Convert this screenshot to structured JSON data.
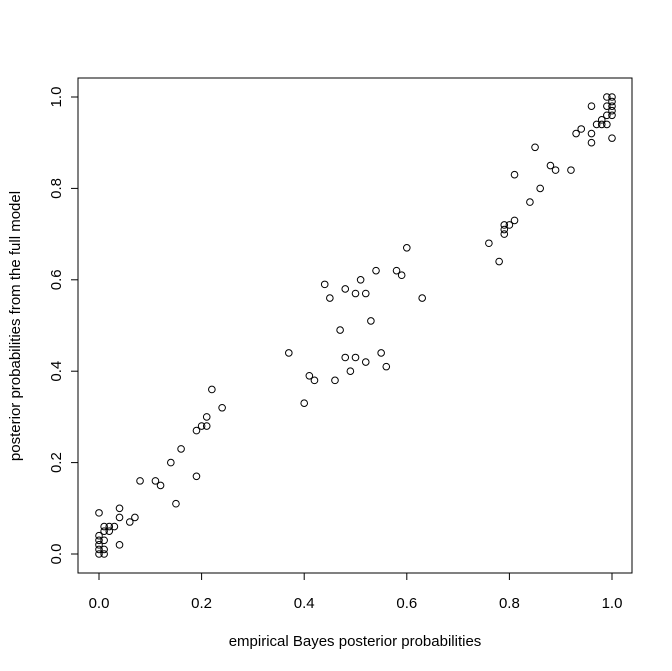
{
  "chart_data": {
    "type": "scatter",
    "title": "",
    "xlabel": "empirical Bayes posterior probabilities",
    "ylabel": "posterior probabilities from the full model",
    "xlim": [
      -0.04,
      1.04
    ],
    "ylim": [
      -0.04,
      1.04
    ],
    "xticks": [
      "0.0",
      "0.2",
      "0.4",
      "0.6",
      "0.8",
      "1.0"
    ],
    "yticks": [
      "0.0",
      "0.2",
      "0.4",
      "0.6",
      "0.8",
      "1.0"
    ],
    "grid": false,
    "marker": "open-circle",
    "points": [
      {
        "x": 0.0,
        "y": 0.0
      },
      {
        "x": 0.0,
        "y": 0.01
      },
      {
        "x": 0.0,
        "y": 0.02
      },
      {
        "x": 0.0,
        "y": 0.03
      },
      {
        "x": 0.0,
        "y": 0.04
      },
      {
        "x": 0.01,
        "y": 0.0
      },
      {
        "x": 0.01,
        "y": 0.01
      },
      {
        "x": 0.01,
        "y": 0.03
      },
      {
        "x": 0.0,
        "y": 0.09
      },
      {
        "x": 0.01,
        "y": 0.05
      },
      {
        "x": 0.01,
        "y": 0.06
      },
      {
        "x": 0.02,
        "y": 0.05
      },
      {
        "x": 0.02,
        "y": 0.06
      },
      {
        "x": 0.03,
        "y": 0.06
      },
      {
        "x": 0.04,
        "y": 0.08
      },
      {
        "x": 0.04,
        "y": 0.1
      },
      {
        "x": 0.04,
        "y": 0.02
      },
      {
        "x": 0.06,
        "y": 0.07
      },
      {
        "x": 0.07,
        "y": 0.08
      },
      {
        "x": 0.08,
        "y": 0.16
      },
      {
        "x": 0.11,
        "y": 0.16
      },
      {
        "x": 0.12,
        "y": 0.15
      },
      {
        "x": 0.14,
        "y": 0.2
      },
      {
        "x": 0.15,
        "y": 0.11
      },
      {
        "x": 0.16,
        "y": 0.23
      },
      {
        "x": 0.19,
        "y": 0.17
      },
      {
        "x": 0.19,
        "y": 0.27
      },
      {
        "x": 0.2,
        "y": 0.28
      },
      {
        "x": 0.21,
        "y": 0.28
      },
      {
        "x": 0.21,
        "y": 0.3
      },
      {
        "x": 0.22,
        "y": 0.36
      },
      {
        "x": 0.24,
        "y": 0.32
      },
      {
        "x": 0.37,
        "y": 0.44
      },
      {
        "x": 0.4,
        "y": 0.33
      },
      {
        "x": 0.41,
        "y": 0.39
      },
      {
        "x": 0.42,
        "y": 0.38
      },
      {
        "x": 0.44,
        "y": 0.59
      },
      {
        "x": 0.45,
        "y": 0.56
      },
      {
        "x": 0.46,
        "y": 0.38
      },
      {
        "x": 0.47,
        "y": 0.49
      },
      {
        "x": 0.48,
        "y": 0.43
      },
      {
        "x": 0.48,
        "y": 0.58
      },
      {
        "x": 0.49,
        "y": 0.4
      },
      {
        "x": 0.5,
        "y": 0.43
      },
      {
        "x": 0.5,
        "y": 0.57
      },
      {
        "x": 0.51,
        "y": 0.6
      },
      {
        "x": 0.52,
        "y": 0.42
      },
      {
        "x": 0.52,
        "y": 0.57
      },
      {
        "x": 0.53,
        "y": 0.51
      },
      {
        "x": 0.54,
        "y": 0.62
      },
      {
        "x": 0.55,
        "y": 0.44
      },
      {
        "x": 0.56,
        "y": 0.41
      },
      {
        "x": 0.58,
        "y": 0.62
      },
      {
        "x": 0.59,
        "y": 0.61
      },
      {
        "x": 0.6,
        "y": 0.67
      },
      {
        "x": 0.63,
        "y": 0.56
      },
      {
        "x": 0.76,
        "y": 0.68
      },
      {
        "x": 0.78,
        "y": 0.64
      },
      {
        "x": 0.79,
        "y": 0.7
      },
      {
        "x": 0.79,
        "y": 0.71
      },
      {
        "x": 0.79,
        "y": 0.72
      },
      {
        "x": 0.8,
        "y": 0.72
      },
      {
        "x": 0.81,
        "y": 0.73
      },
      {
        "x": 0.81,
        "y": 0.83
      },
      {
        "x": 0.84,
        "y": 0.77
      },
      {
        "x": 0.85,
        "y": 0.89
      },
      {
        "x": 0.86,
        "y": 0.8
      },
      {
        "x": 0.88,
        "y": 0.85
      },
      {
        "x": 0.89,
        "y": 0.84
      },
      {
        "x": 0.92,
        "y": 0.84
      },
      {
        "x": 0.93,
        "y": 0.92
      },
      {
        "x": 0.94,
        "y": 0.93
      },
      {
        "x": 0.96,
        "y": 0.9
      },
      {
        "x": 0.96,
        "y": 0.92
      },
      {
        "x": 0.96,
        "y": 0.98
      },
      {
        "x": 0.97,
        "y": 0.94
      },
      {
        "x": 0.98,
        "y": 0.94
      },
      {
        "x": 0.98,
        "y": 0.95
      },
      {
        "x": 0.99,
        "y": 0.94
      },
      {
        "x": 0.99,
        "y": 0.96
      },
      {
        "x": 0.99,
        "y": 0.98
      },
      {
        "x": 0.99,
        "y": 1.0
      },
      {
        "x": 1.0,
        "y": 0.91
      },
      {
        "x": 1.0,
        "y": 0.96
      },
      {
        "x": 1.0,
        "y": 0.97
      },
      {
        "x": 1.0,
        "y": 0.98
      },
      {
        "x": 1.0,
        "y": 0.99
      },
      {
        "x": 1.0,
        "y": 1.0
      }
    ]
  }
}
